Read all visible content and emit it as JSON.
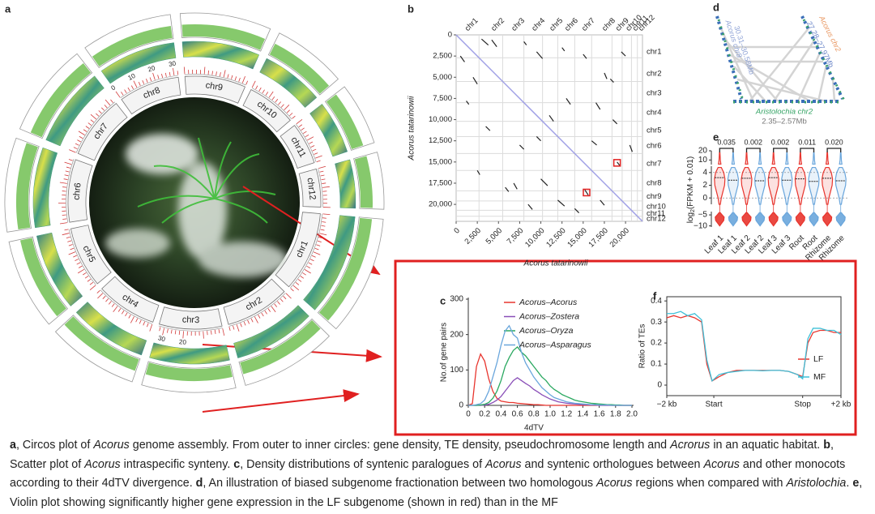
{
  "panel_labels": [
    "a",
    "b",
    "c",
    "d",
    "e",
    "f"
  ],
  "circos": {
    "chromosomes": [
      {
        "name": "chr1",
        "length": 42
      },
      {
        "name": "chr2",
        "length": 34
      },
      {
        "name": "chr3",
        "length": 33,
        "ticks": [
          20,
          30
        ]
      },
      {
        "name": "chr4",
        "length": 32
      },
      {
        "name": "chr5",
        "length": 32
      },
      {
        "name": "chr6",
        "length": 33
      },
      {
        "name": "chr7",
        "length": 33
      },
      {
        "name": "chr8",
        "length": 32,
        "ticks": [
          0,
          10,
          20,
          30
        ]
      },
      {
        "name": "chr9",
        "length": 32
      },
      {
        "name": "chr10",
        "length": 26
      },
      {
        "name": "chr11",
        "length": 22
      },
      {
        "name": "chr12",
        "length": 20
      }
    ],
    "heat_color": "#3f9a82",
    "density_color": "#86c96c",
    "tick_color": "#d23a3a"
  },
  "chart_data": [
    {
      "type": "dotplot",
      "x_label": "Acorus tatarinowii",
      "y_label": "Acorus tatarinowii",
      "xlim": [
        0,
        22000
      ],
      "ylim": [
        0,
        22000
      ],
      "xticks": [
        0,
        {
          "value": 2500,
          "label": "2,500"
        },
        {
          "value": 5000,
          "label": "5,000"
        },
        {
          "value": 7500,
          "label": "7,500"
        },
        {
          "value": 10000,
          "label": "10,000"
        },
        {
          "value": 12500,
          "label": "12,500"
        },
        {
          "value": 15000,
          "label": "15,000"
        },
        {
          "value": 17500,
          "label": "17,500"
        },
        {
          "value": 20000,
          "label": "20,000"
        }
      ],
      "yticks": [
        0,
        {
          "value": 2500,
          "label": "2,500"
        },
        {
          "value": 5000,
          "label": "5,000"
        },
        {
          "value": 7500,
          "label": "7,500"
        },
        {
          "value": 10000,
          "label": "10,000"
        },
        {
          "value": 12500,
          "label": "12,500"
        },
        {
          "value": 15000,
          "label": "15,000"
        },
        {
          "value": 17500,
          "label": "17,500"
        },
        {
          "value": 20000,
          "label": "20,000"
        }
      ],
      "top_labels": [
        {
          "value": 1200,
          "label": "chr1"
        },
        {
          "value": 4300,
          "label": "chr2"
        },
        {
          "value": 6700,
          "label": "chr3"
        },
        {
          "value": 9100,
          "label": "chr4"
        },
        {
          "value": 11200,
          "label": "chr5"
        },
        {
          "value": 13000,
          "label": "chr6"
        },
        {
          "value": 15000,
          "label": "chr7"
        },
        {
          "value": 17400,
          "label": "chr8"
        },
        {
          "value": 19000,
          "label": "chr9"
        },
        {
          "value": 20200,
          "label": "chr10"
        },
        {
          "value": 21000,
          "label": "chr11"
        },
        {
          "value": 21700,
          "label": "chr12"
        }
      ],
      "right_labels": [
        {
          "value": 2000,
          "label": "chr1"
        },
        {
          "value": 4600,
          "label": "chr2"
        },
        {
          "value": 6900,
          "label": "chr3"
        },
        {
          "value": 9200,
          "label": "chr4"
        },
        {
          "value": 11300,
          "label": "chr5"
        },
        {
          "value": 13100,
          "label": "chr6"
        },
        {
          "value": 15200,
          "label": "chr7"
        },
        {
          "value": 17500,
          "label": "chr8"
        },
        {
          "value": 19100,
          "label": "chr9"
        },
        {
          "value": 20300,
          "label": "chr10"
        },
        {
          "value": 21100,
          "label": "chr11"
        },
        {
          "value": 21700,
          "label": "chr12"
        }
      ],
      "chromosome_bounds": [
        2700,
        5500,
        8000,
        10200,
        12000,
        14000,
        16000,
        18400,
        19600,
        20700,
        21400
      ],
      "segments": [
        [
          3000,
          500,
          3800,
          1200
        ],
        [
          4200,
          600,
          4800,
          1400
        ],
        [
          8000,
          800,
          8300,
          1200
        ],
        [
          9500,
          2000,
          10200,
          2800
        ],
        [
          12500,
          1500,
          12800,
          1900
        ],
        [
          15000,
          2300,
          15400,
          2800
        ],
        [
          17500,
          4500,
          17800,
          5200
        ],
        [
          18200,
          5200,
          18600,
          5600
        ],
        [
          19500,
          2000,
          20000,
          2500
        ],
        [
          13000,
          7500,
          13500,
          8200
        ],
        [
          16500,
          8000,
          17000,
          8800
        ],
        [
          11000,
          9500,
          11500,
          10200
        ],
        [
          16000,
          12500,
          16600,
          13000
        ],
        [
          18500,
          10000,
          19000,
          10500
        ],
        [
          19000,
          15000,
          19300,
          15400
        ],
        [
          20500,
          13000,
          20800,
          13800
        ],
        [
          500,
          2500,
          1000,
          3200
        ],
        [
          2000,
          5000,
          2500,
          5800
        ],
        [
          1200,
          7800,
          1500,
          8200
        ],
        [
          3500,
          10800,
          4000,
          11300
        ],
        [
          7500,
          13000,
          8000,
          13500
        ],
        [
          6800,
          17500,
          7200,
          18200
        ],
        [
          5800,
          18000,
          6200,
          18500
        ],
        [
          10000,
          17000,
          10800,
          17800
        ],
        [
          8500,
          20000,
          9000,
          20600
        ],
        [
          14000,
          20500,
          14500,
          21000
        ],
        [
          12000,
          19500,
          12800,
          20200
        ],
        [
          15200,
          18300,
          15600,
          18900
        ],
        [
          17000,
          19500,
          17500,
          20100
        ],
        [
          2500,
          16000,
          2800,
          16500
        ],
        [
          9500,
          12000,
          10000,
          12500
        ]
      ],
      "highlight_boxes": [
        [
          19000,
          15100
        ],
        [
          15400,
          18600
        ]
      ],
      "segment_color": "#222",
      "diagonal_color": "#a0a0e6",
      "box_color": "#e02020",
      "grid_color": "#dcdcdc"
    },
    {
      "type": "line",
      "x_label": "4dTV",
      "y_label": "No.of gene pairs",
      "legend": "upper right",
      "frame": false,
      "xlim": [
        0,
        2
      ],
      "ylim": [
        0,
        300
      ],
      "xticks": [
        0,
        0.2,
        0.4,
        0.6,
        0.8,
        {
          "value": 1,
          "label": "1.0"
        },
        1.2,
        1.4,
        1.6,
        1.8,
        {
          "value": 2,
          "label": "2.0"
        }
      ],
      "yticks": [
        0,
        100,
        200,
        300
      ],
      "x": [
        0,
        0.05,
        0.1,
        0.15,
        0.2,
        0.25,
        0.3,
        0.35,
        0.4,
        0.45,
        0.5,
        0.55,
        0.6,
        0.65,
        0.7,
        0.75,
        0.8,
        0.85,
        0.9,
        0.95,
        1,
        1.05,
        1.1,
        1.15,
        1.2,
        1.25,
        1.3,
        1.35,
        1.4,
        1.45,
        1.5,
        1.55,
        1.6,
        1.65,
        1.7,
        1.75,
        1.8,
        1.85,
        1.9,
        1.95,
        2
      ],
      "series": [
        {
          "name": "Acorus–Acorus",
          "color": "#e8352e",
          "values": [
            0,
            5,
            110,
            145,
            125,
            75,
            40,
            20,
            12,
            10,
            8,
            8,
            6,
            5,
            4,
            3,
            2,
            2,
            1,
            0,
            0,
            0,
            0,
            0,
            0,
            0,
            0,
            0,
            0,
            0,
            0,
            0,
            0,
            0,
            0,
            0,
            0,
            0,
            0,
            0,
            0
          ]
        },
        {
          "name": "Acorus–Zostera",
          "color": "#8a4fb8",
          "values": [
            0,
            0,
            0,
            0,
            1,
            3,
            8,
            15,
            25,
            40,
            55,
            70,
            78,
            70,
            62,
            55,
            45,
            38,
            30,
            24,
            18,
            14,
            10,
            8,
            6,
            5,
            4,
            3,
            2,
            2,
            1,
            1,
            0,
            0,
            0,
            0,
            0,
            0,
            0,
            0,
            0
          ]
        },
        {
          "name": "Acorus–Oryza",
          "color": "#2aa860",
          "values": [
            0,
            0,
            0,
            1,
            3,
            8,
            20,
            40,
            70,
            110,
            135,
            155,
            165,
            150,
            140,
            125,
            110,
            95,
            80,
            70,
            55,
            45,
            38,
            30,
            25,
            20,
            15,
            12,
            10,
            8,
            6,
            5,
            4,
            3,
            2,
            2,
            1,
            1,
            0,
            0,
            0
          ]
        },
        {
          "name": "Acorus–Asparagus",
          "color": "#6aa6dc",
          "values": [
            0,
            0,
            2,
            5,
            15,
            40,
            80,
            120,
            170,
            210,
            225,
            200,
            190,
            150,
            120,
            100,
            80,
            65,
            50,
            40,
            30,
            22,
            18,
            14,
            10,
            8,
            6,
            5,
            4,
            3,
            2,
            2,
            1,
            1,
            1,
            0,
            0,
            0,
            0,
            0,
            0
          ]
        }
      ]
    },
    {
      "type": "line",
      "y_label": "Ratio of TEs",
      "legend": "lower right",
      "frame": true,
      "xlim": [
        0,
        100
      ],
      "ylim": [
        -0.05,
        0.42
      ],
      "xticks": [
        {
          "value": 0,
          "label": "−2 kb"
        },
        {
          "value": 27,
          "label": "Start"
        },
        {
          "value": 78,
          "label": "Stop"
        },
        {
          "value": 100,
          "label": "+2 kb"
        }
      ],
      "yticks": [
        0,
        0.1,
        0.2,
        0.3,
        0.4
      ],
      "x": [
        0,
        4,
        8,
        12,
        16,
        20,
        23,
        26,
        30,
        35,
        40,
        45,
        50,
        55,
        60,
        65,
        70,
        75,
        78,
        81,
        84,
        88,
        92,
        96,
        100
      ],
      "series": [
        {
          "name": "LF",
          "color": "#e8352e",
          "values": [
            0.32,
            0.33,
            0.32,
            0.33,
            0.32,
            0.3,
            0.1,
            0.02,
            0.04,
            0.06,
            0.07,
            0.07,
            0.07,
            0.07,
            0.07,
            0.07,
            0.065,
            0.05,
            0.04,
            0.2,
            0.25,
            0.26,
            0.26,
            0.25,
            0.25
          ]
        },
        {
          "name": "MF",
          "color": "#3fc0d8",
          "values": [
            0.34,
            0.34,
            0.35,
            0.33,
            0.34,
            0.31,
            0.12,
            0.02,
            0.05,
            0.06,
            0.065,
            0.07,
            0.07,
            0.068,
            0.07,
            0.07,
            0.065,
            0.05,
            0.03,
            0.22,
            0.27,
            0.27,
            0.26,
            0.26,
            0.24
          ]
        }
      ]
    },
    {
      "type": "violin",
      "y_label": [
        "log",
        "2",
        "(FPKM + 0.01)"
      ],
      "categories": [
        "Leaf 1",
        "Leaf 1",
        "Leaf 2",
        "Leaf 2",
        "Leaf 3",
        "Leaf 3",
        "Root",
        "Root",
        "Rhizome",
        "Rhizome"
      ],
      "values": [
        3.2,
        2.8,
        3.1,
        2.7,
        3.2,
        2.8,
        3.0,
        2.6,
        3.1,
        2.7
      ],
      "colors": [
        "#e8352e",
        "#6aa6dc",
        "#e8352e",
        "#6aa6dc",
        "#e8352e",
        "#6aa6dc",
        "#e8352e",
        "#6aa6dc",
        "#e8352e",
        "#6aa6dc"
      ],
      "p_values": [
        0.035,
        0.002,
        0.002,
        0.011,
        {
          "value": 0.02,
          "label": "0.020"
        }
      ],
      "y_segments": [
        {
          "ylim": [
            -10.5,
            -3.5
          ],
          "yticks": [
            {
              "value": -10,
              "label": "−10"
            },
            {
              "value": -5,
              "label": "−5"
            }
          ]
        },
        {
          "ylim": [
            -1,
            5
          ],
          "yticks": [
            0,
            2,
            4
          ]
        },
        {
          "ylim": [
            5,
            20
          ],
          "yticks": [
            10,
            20
          ]
        }
      ]
    }
  ],
  "diagram_d": {
    "left_label": "Acorus chr8",
    "left_range": "30.31–30.58Mb",
    "right_label": "Acorus chr2",
    "right_range": "27.28–27.97Mb",
    "bottom_label": "Aristolochia chr2",
    "bottom_range": "2.35–2.57Mb"
  },
  "caption": [
    {
      "text": "a",
      "bold": true
    },
    {
      "text": ", Circos plot of "
    },
    {
      "text": "Acorus",
      "italic": true
    },
    {
      "text": " genome assembly. From outer to inner circles: gene density, TE density, pseudochromosome length and "
    },
    {
      "text": "Acrorus",
      "italic": true
    },
    {
      "text": " in an aquatic habitat. "
    },
    {
      "text": "b",
      "bold": true
    },
    {
      "text": ", Scatter plot of "
    },
    {
      "text": "Acorus",
      "italic": true
    },
    {
      "text": " intraspecific synteny. "
    },
    {
      "text": "c",
      "bold": true
    },
    {
      "text": ", Density distributions of syntenic paralogues of "
    },
    {
      "text": "Acorus",
      "italic": true
    },
    {
      "text": " and syntenic orthologues between "
    },
    {
      "text": "Acorus",
      "italic": true
    },
    {
      "text": " and other monocots according to their 4dTV divergence. "
    },
    {
      "text": "d",
      "bold": true
    },
    {
      "text": ", An illustration of biased subgenome fractionation between two homologous "
    },
    {
      "text": "Acorus",
      "italic": true
    },
    {
      "text": " regions when compared with "
    },
    {
      "text": "Aristolochia",
      "italic": true
    },
    {
      "text": ". "
    },
    {
      "text": "e",
      "bold": true
    },
    {
      "text": ", Violin plot showing significantly higher gene expression in the LF subgenome (shown in red) than in the MF"
    }
  ]
}
